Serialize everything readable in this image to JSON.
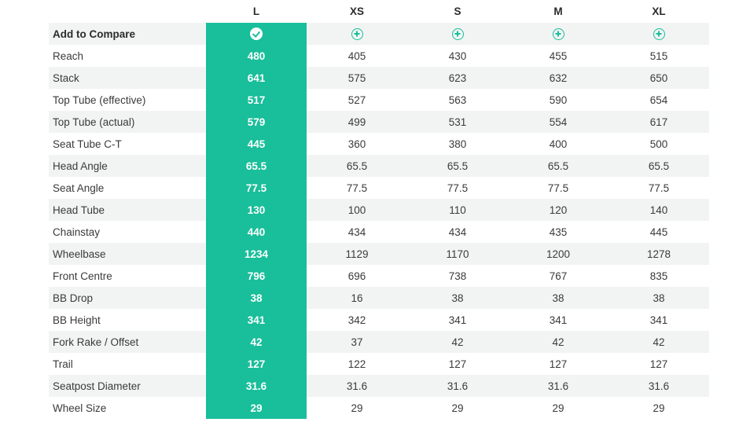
{
  "sizes": [
    {
      "label": "L",
      "selected": true
    },
    {
      "label": "XS",
      "selected": false
    },
    {
      "label": "S",
      "selected": false
    },
    {
      "label": "M",
      "selected": false
    },
    {
      "label": "XL",
      "selected": false
    }
  ],
  "compare_label": "Add to Compare",
  "accent_color": "#19be9a",
  "icons": {
    "selected": "check-circle-icon",
    "unselected": "plus-circle-icon"
  },
  "rows": [
    {
      "label": "Reach",
      "values": [
        "480",
        "405",
        "430",
        "455",
        "515"
      ]
    },
    {
      "label": "Stack",
      "values": [
        "641",
        "575",
        "623",
        "632",
        "650"
      ]
    },
    {
      "label": "Top Tube (effective)",
      "values": [
        "517",
        "527",
        "563",
        "590",
        "654"
      ]
    },
    {
      "label": "Top Tube (actual)",
      "values": [
        "579",
        "499",
        "531",
        "554",
        "617"
      ]
    },
    {
      "label": "Seat Tube C-T",
      "values": [
        "445",
        "360",
        "380",
        "400",
        "500"
      ]
    },
    {
      "label": "Head Angle",
      "values": [
        "65.5",
        "65.5",
        "65.5",
        "65.5",
        "65.5"
      ]
    },
    {
      "label": "Seat Angle",
      "values": [
        "77.5",
        "77.5",
        "77.5",
        "77.5",
        "77.5"
      ]
    },
    {
      "label": "Head Tube",
      "values": [
        "130",
        "100",
        "110",
        "120",
        "140"
      ]
    },
    {
      "label": "Chainstay",
      "values": [
        "440",
        "434",
        "434",
        "435",
        "445"
      ]
    },
    {
      "label": "Wheelbase",
      "values": [
        "1234",
        "1129",
        "1170",
        "1200",
        "1278"
      ]
    },
    {
      "label": "Front Centre",
      "values": [
        "796",
        "696",
        "738",
        "767",
        "835"
      ]
    },
    {
      "label": "BB Drop",
      "values": [
        "38",
        "16",
        "38",
        "38",
        "38"
      ]
    },
    {
      "label": "BB Height",
      "values": [
        "341",
        "342",
        "341",
        "341",
        "341"
      ]
    },
    {
      "label": "Fork Rake / Offset",
      "values": [
        "42",
        "37",
        "42",
        "42",
        "42"
      ]
    },
    {
      "label": "Trail",
      "values": [
        "127",
        "122",
        "127",
        "127",
        "127"
      ]
    },
    {
      "label": "Seatpost Diameter",
      "values": [
        "31.6",
        "31.6",
        "31.6",
        "31.6",
        "31.6"
      ]
    },
    {
      "label": "Wheel Size",
      "values": [
        "29",
        "29",
        "29",
        "29",
        "29"
      ]
    }
  ]
}
